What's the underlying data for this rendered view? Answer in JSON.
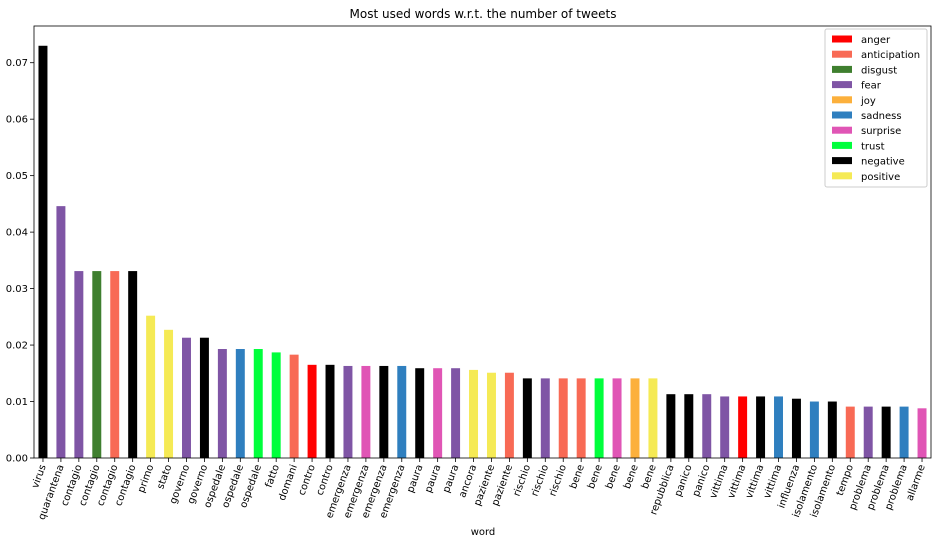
{
  "chart_data": {
    "type": "bar",
    "title": "Most used words w.r.t. the number of tweets",
    "xlabel": "word",
    "ylabel": "",
    "ylim": [
      0,
      0.0765
    ],
    "yticks": [
      0.0,
      0.01,
      0.02,
      0.03,
      0.04,
      0.05,
      0.06,
      0.07
    ],
    "ytick_labels": [
      "0.00",
      "0.01",
      "0.02",
      "0.03",
      "0.04",
      "0.05",
      "0.06",
      "0.07"
    ],
    "grid": false,
    "legend_position": "top-right",
    "emotion_colors": {
      "anger": "#ff0000",
      "anticipation": "#f86a55",
      "disgust": "#3f7f2f",
      "fear": "#7f55a5",
      "joy": "#fcb03c",
      "sadness": "#2f7fbf",
      "surprise": "#e055b5",
      "trust": "#00ff3c",
      "negative": "#000000",
      "positive": "#f5ea55"
    },
    "legend": [
      "anger",
      "anticipation",
      "disgust",
      "fear",
      "joy",
      "sadness",
      "surprise",
      "trust",
      "negative",
      "positive"
    ],
    "bars": [
      {
        "word": "virus",
        "emotion": "negative",
        "value": 0.073
      },
      {
        "word": "quarantena",
        "emotion": "fear",
        "value": 0.0446
      },
      {
        "word": "contagio",
        "emotion": "fear",
        "value": 0.0331
      },
      {
        "word": "contagio",
        "emotion": "disgust",
        "value": 0.0331
      },
      {
        "word": "contagio",
        "emotion": "anticipation",
        "value": 0.0331
      },
      {
        "word": "contagio",
        "emotion": "negative",
        "value": 0.0331
      },
      {
        "word": "primo",
        "emotion": "positive",
        "value": 0.0252
      },
      {
        "word": "stato",
        "emotion": "positive",
        "value": 0.0227
      },
      {
        "word": "governo",
        "emotion": "fear",
        "value": 0.0213
      },
      {
        "word": "governo",
        "emotion": "negative",
        "value": 0.0213
      },
      {
        "word": "ospedale",
        "emotion": "fear",
        "value": 0.0193
      },
      {
        "word": "ospedale",
        "emotion": "sadness",
        "value": 0.0193
      },
      {
        "word": "ospedale",
        "emotion": "trust",
        "value": 0.0193
      },
      {
        "word": "fatto",
        "emotion": "trust",
        "value": 0.0187
      },
      {
        "word": "domani",
        "emotion": "anticipation",
        "value": 0.0183
      },
      {
        "word": "contro",
        "emotion": "anger",
        "value": 0.0165
      },
      {
        "word": "contro",
        "emotion": "negative",
        "value": 0.0165
      },
      {
        "word": "emergenza",
        "emotion": "fear",
        "value": 0.0163
      },
      {
        "word": "emergenza",
        "emotion": "surprise",
        "value": 0.0163
      },
      {
        "word": "emergenza",
        "emotion": "negative",
        "value": 0.0163
      },
      {
        "word": "emergenza",
        "emotion": "sadness",
        "value": 0.0163
      },
      {
        "word": "paura",
        "emotion": "negative",
        "value": 0.0159
      },
      {
        "word": "paura",
        "emotion": "surprise",
        "value": 0.0159
      },
      {
        "word": "paura",
        "emotion": "fear",
        "value": 0.0159
      },
      {
        "word": "ancora",
        "emotion": "positive",
        "value": 0.0156
      },
      {
        "word": "paziente",
        "emotion": "positive",
        "value": 0.0151
      },
      {
        "word": "paziente",
        "emotion": "anticipation",
        "value": 0.0151
      },
      {
        "word": "rischio",
        "emotion": "negative",
        "value": 0.0141
      },
      {
        "word": "rischio",
        "emotion": "fear",
        "value": 0.0141
      },
      {
        "word": "rischio",
        "emotion": "anticipation",
        "value": 0.0141
      },
      {
        "word": "bene",
        "emotion": "anticipation",
        "value": 0.0141
      },
      {
        "word": "bene",
        "emotion": "trust",
        "value": 0.0141
      },
      {
        "word": "bene",
        "emotion": "surprise",
        "value": 0.0141
      },
      {
        "word": "bene",
        "emotion": "joy",
        "value": 0.0141
      },
      {
        "word": "bene",
        "emotion": "positive",
        "value": 0.0141
      },
      {
        "word": "repubblica",
        "emotion": "negative",
        "value": 0.0113
      },
      {
        "word": "panico",
        "emotion": "negative",
        "value": 0.0113
      },
      {
        "word": "panico",
        "emotion": "fear",
        "value": 0.0113
      },
      {
        "word": "vittima",
        "emotion": "fear",
        "value": 0.0109
      },
      {
        "word": "vittima",
        "emotion": "anger",
        "value": 0.0109
      },
      {
        "word": "vittima",
        "emotion": "negative",
        "value": 0.0109
      },
      {
        "word": "vittima",
        "emotion": "sadness",
        "value": 0.0109
      },
      {
        "word": "influenza",
        "emotion": "negative",
        "value": 0.0105
      },
      {
        "word": "isolamento",
        "emotion": "sadness",
        "value": 0.01
      },
      {
        "word": "isolamento",
        "emotion": "negative",
        "value": 0.01
      },
      {
        "word": "tempo",
        "emotion": "anticipation",
        "value": 0.0091
      },
      {
        "word": "problema",
        "emotion": "fear",
        "value": 0.0091
      },
      {
        "word": "problema",
        "emotion": "negative",
        "value": 0.0091
      },
      {
        "word": "problema",
        "emotion": "sadness",
        "value": 0.0091
      },
      {
        "word": "allarme",
        "emotion": "surprise",
        "value": 0.0088
      }
    ]
  }
}
